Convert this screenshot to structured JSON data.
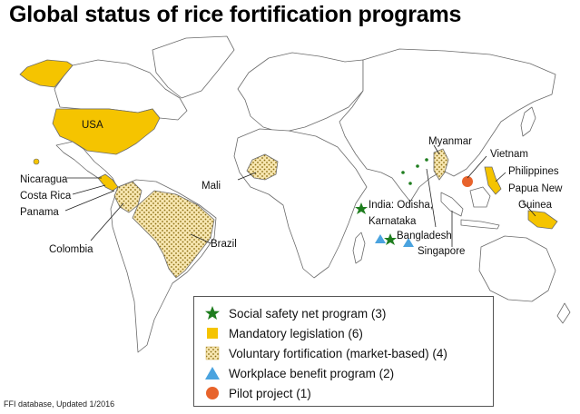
{
  "title": "Global status of rice fortification programs",
  "colors": {
    "mandatory": "#f5c400",
    "voluntary_base": "#f7e6b0",
    "voluntary_dots": "#8a6d10",
    "social_safety_net": "#1e7d1e",
    "workplace": "#4aa3df",
    "pilot": "#e8632b",
    "land_outline": "#6b6b6b"
  },
  "country_labels": {
    "usa": "USA",
    "mali": "Mali",
    "nicaragua": "Nicaragua",
    "costa_rica": "Costa Rica",
    "panama": "Panama",
    "colombia": "Colombia",
    "brazil": "Brazil",
    "india_line1": "India: Odisha,",
    "india_line2": "Karnataka",
    "bangladesh": "Bangladesh",
    "singapore": "Singapore",
    "myanmar": "Myanmar",
    "vietnam": "Vietnam",
    "philippines": "Philippines",
    "png_line1": "Papua New",
    "png_line2": "Guinea"
  },
  "legend": [
    {
      "symbol": "star-green-icon",
      "label": "Social safety net program (3)"
    },
    {
      "symbol": "square-yellow-icon",
      "label": "Mandatory legislation (6)"
    },
    {
      "symbol": "square-dotted-icon",
      "label": "Voluntary fortification (market-based) (4)"
    },
    {
      "symbol": "triangle-blue-icon",
      "label": "Workplace benefit program (2)"
    },
    {
      "symbol": "circle-orange-icon",
      "label": "Pilot project (1)"
    }
  ],
  "source": "FFI database, Updated 1/2016"
}
